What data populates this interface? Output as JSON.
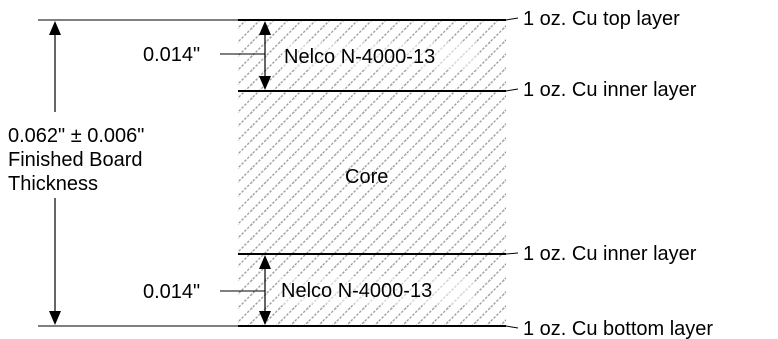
{
  "layers": {
    "top_copper": "1 oz. Cu top layer",
    "inner_copper_1": "1 oz. Cu inner layer",
    "inner_copper_2": "1 oz. Cu inner layer",
    "bottom_copper": "1 oz. Cu bottom layer"
  },
  "dielectrics": {
    "top_prepreg": "Nelco N-4000-13",
    "core": "Core",
    "bottom_prepreg": "Nelco N-4000-13"
  },
  "dimensions": {
    "top_prepreg_thickness": "0.014\"",
    "bottom_prepreg_thickness": "0.014\"",
    "board_thickness_value": "0.062\" ± 0.006\"",
    "board_thickness_line2": "Finished Board",
    "board_thickness_line3": "Thickness"
  },
  "colors": {
    "ink": "#000000",
    "hatch": "#a0a0a0",
    "background": "#ffffff"
  }
}
